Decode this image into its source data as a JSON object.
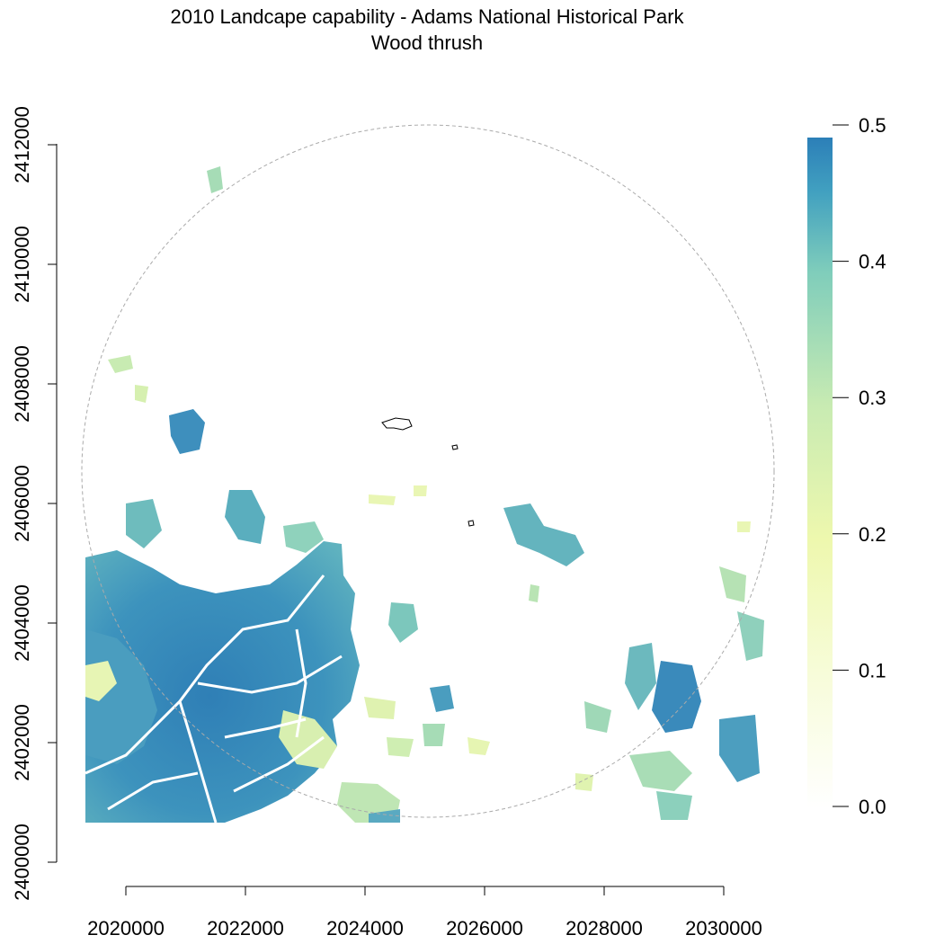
{
  "title": "2010 Landcape capability - Adams National Historical Park",
  "subtitle": "Wood thrush",
  "x_axis": {
    "ticks": [
      "2020000",
      "2022000",
      "2024000",
      "2026000",
      "2028000",
      "2030000"
    ]
  },
  "y_axis": {
    "ticks": [
      "2400000",
      "2402000",
      "2404000",
      "2406000",
      "2408000",
      "2410000",
      "2412000"
    ]
  },
  "legend": {
    "ticks": [
      "0.0",
      "0.1",
      "0.2",
      "0.3",
      "0.4",
      "0.5"
    ],
    "min": 0.0,
    "max": 0.5,
    "colors": [
      "#ffffff",
      "#f7fcd9",
      "#eef8ae",
      "#c8ebb2",
      "#7fcdbb",
      "#41a0c0",
      "#2c7fb8"
    ]
  },
  "map": {
    "x_range": [
      2019300,
      2030700
    ],
    "y_range": [
      2400000,
      2412400
    ],
    "study_area": "circular buffer around park",
    "park_boundary_color": "#000000",
    "buffer_boundary_color": "#aaaaaa"
  }
}
